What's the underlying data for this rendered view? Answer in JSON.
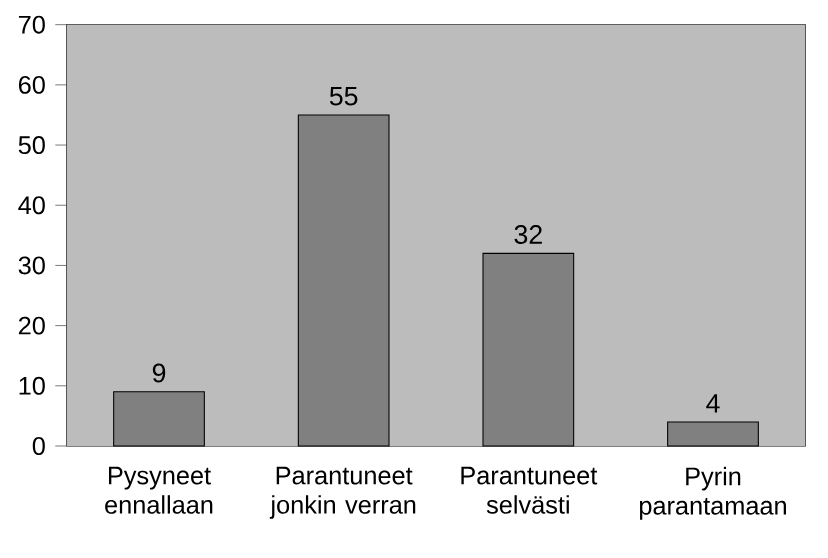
{
  "chart_data": {
    "type": "bar",
    "categories": [
      "Pysyneet ennallaan",
      "Parantuneet jonkin verran",
      "Parantuneet selvästi",
      "Pyrin parantamaan"
    ],
    "values": [
      9,
      55,
      32,
      4
    ],
    "color": "#808080",
    "ylim": [
      0,
      70
    ],
    "yticks": [
      0,
      10,
      20,
      30,
      40,
      50,
      60,
      70
    ],
    "data_labels": true
  }
}
